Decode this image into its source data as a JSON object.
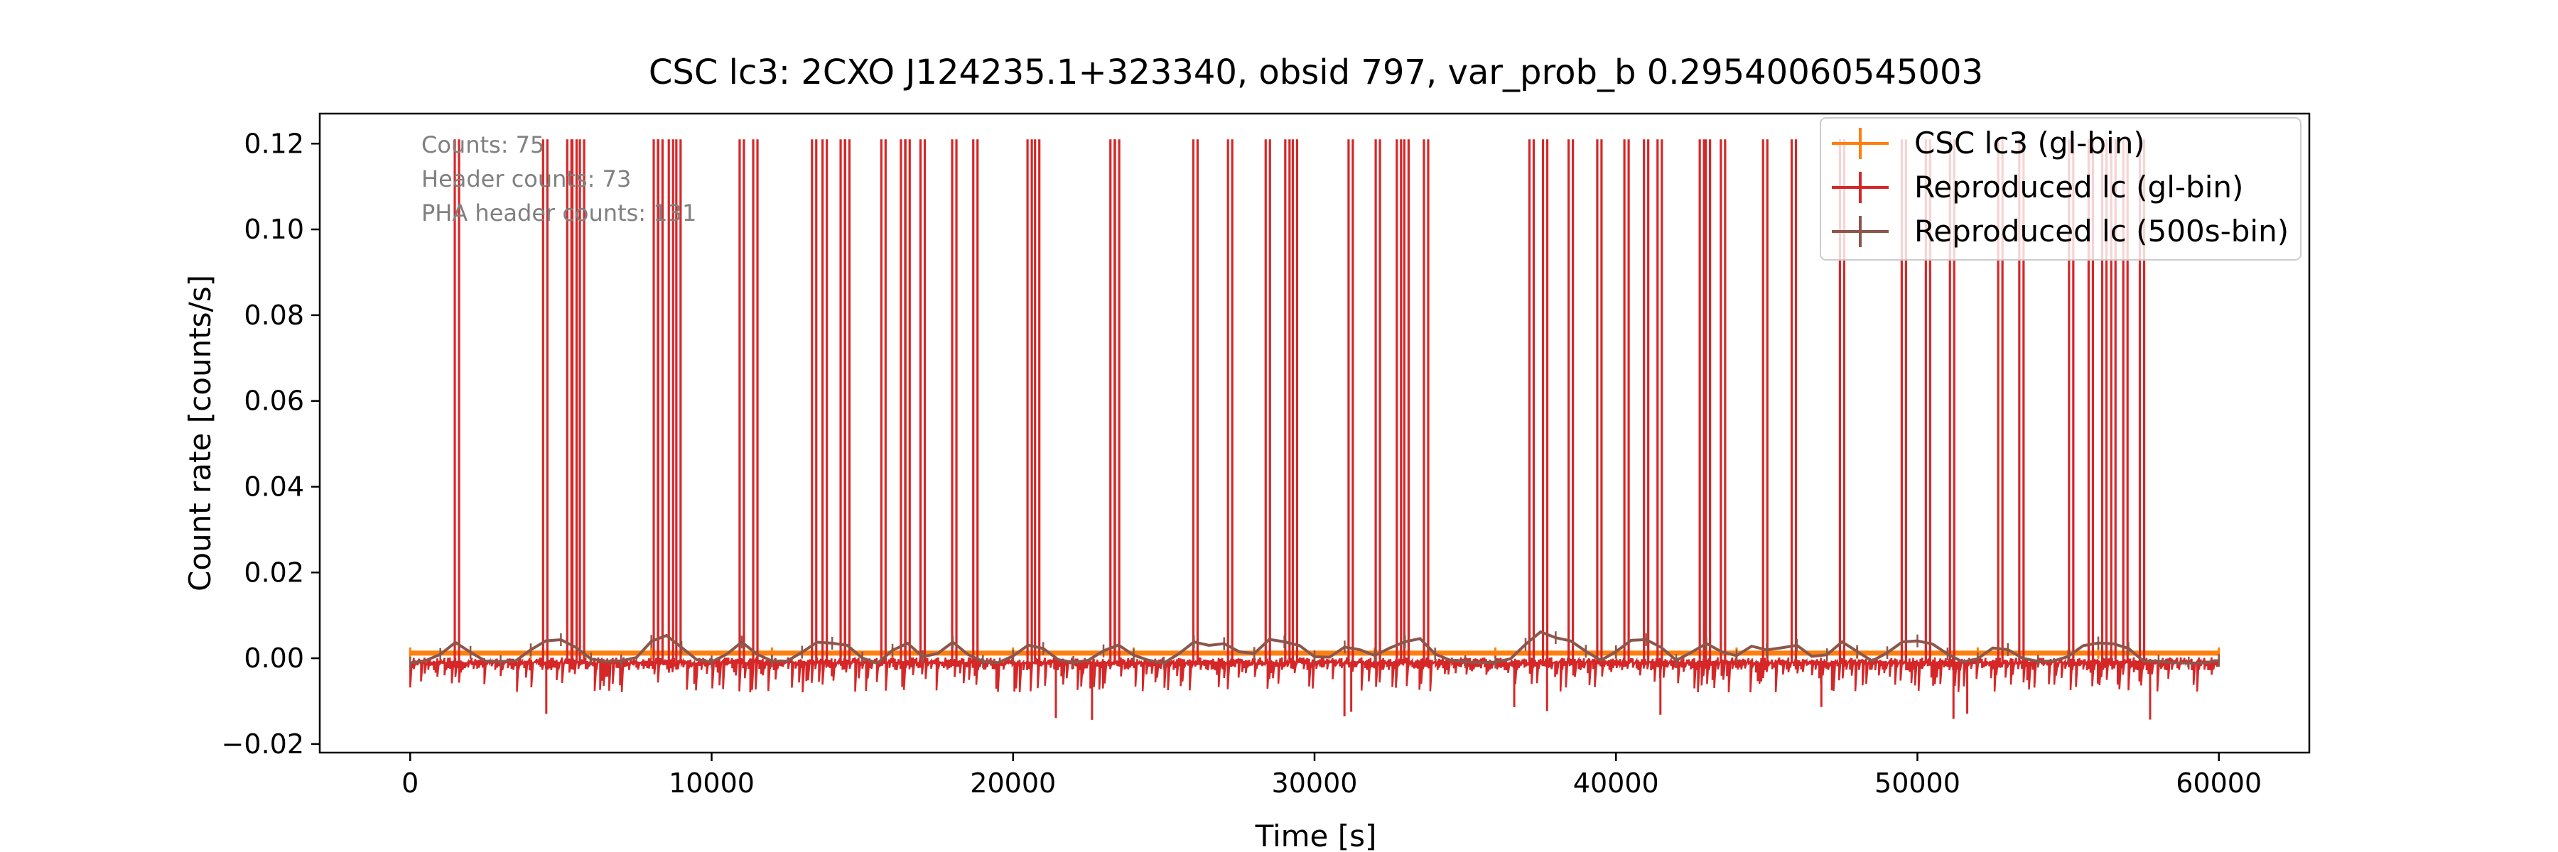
{
  "chart_data": {
    "type": "line",
    "title": "CSC lc3: 2CXO J124235.1+323340, obsid 797, var_prob_b 0.29540060545003",
    "xlabel": "Time [s]",
    "ylabel": "Count rate [counts/s]",
    "xlim": [
      -3000,
      63000
    ],
    "ylim": [
      -0.022,
      0.127
    ],
    "xticks": [
      0,
      10000,
      20000,
      30000,
      40000,
      50000,
      60000
    ],
    "xtick_labels": [
      "0",
      "10000",
      "20000",
      "30000",
      "40000",
      "50000",
      "60000"
    ],
    "yticks": [
      -0.02,
      0.0,
      0.02,
      0.04,
      0.06,
      0.08,
      0.1,
      0.12
    ],
    "ytick_labels": [
      "−0.02",
      "0.00",
      "0.02",
      "0.04",
      "0.06",
      "0.08",
      "0.10",
      "0.12"
    ],
    "grid": false,
    "legend_position": "upper right",
    "annotations": [
      {
        "text": "Counts: 75"
      },
      {
        "text": "Header counts: 73"
      },
      {
        "text": "PHA header counts: 131"
      }
    ],
    "series": [
      {
        "name": "CSC lc3 (gl-bin)",
        "color": "#ff7f0e",
        "x": [
          0,
          60000
        ],
        "y": [
          0.0012,
          0.0012
        ]
      },
      {
        "name": "Reproduced lc (gl-bin)",
        "color": "#d62728",
        "baseline": -0.001,
        "spike_peak": 0.121,
        "spike_times": [
          1550,
          4480,
          5280,
          5450,
          5700,
          8150,
          8300,
          8650,
          8900,
          11000,
          11450,
          13400,
          13750,
          14350,
          14500,
          15700,
          16350,
          16500,
          17000,
          18050,
          18750,
          20550,
          20800,
          23300,
          23450,
          26050,
          27200,
          28450,
          29100,
          29350,
          31200,
          32100,
          32800,
          33050,
          33700,
          37200,
          37650,
          38500,
          39450,
          40350,
          41000,
          41450,
          42850,
          43050,
          43550,
          44950,
          45900,
          47500,
          49550,
          50350,
          51150,
          52750,
          53450,
          55100,
          55750,
          56200,
          56500,
          56900,
          57450
        ]
      },
      {
        "name": "Reproduced lc (500s-bin)",
        "color": "#8c564b",
        "bin_size": 500,
        "baseline": -0.0008,
        "bump_times": [
          1550,
          4400,
          5200,
          8150,
          8700,
          11000,
          13400,
          14300,
          16400,
          18000,
          20700,
          23400,
          26000,
          27100,
          28500,
          29300,
          31200,
          32700,
          33500,
          37300,
          37700,
          38600,
          40400,
          41200,
          43000,
          44700,
          45900,
          47500,
          49500,
          50400,
          52700,
          55700,
          56700
        ]
      }
    ]
  }
}
